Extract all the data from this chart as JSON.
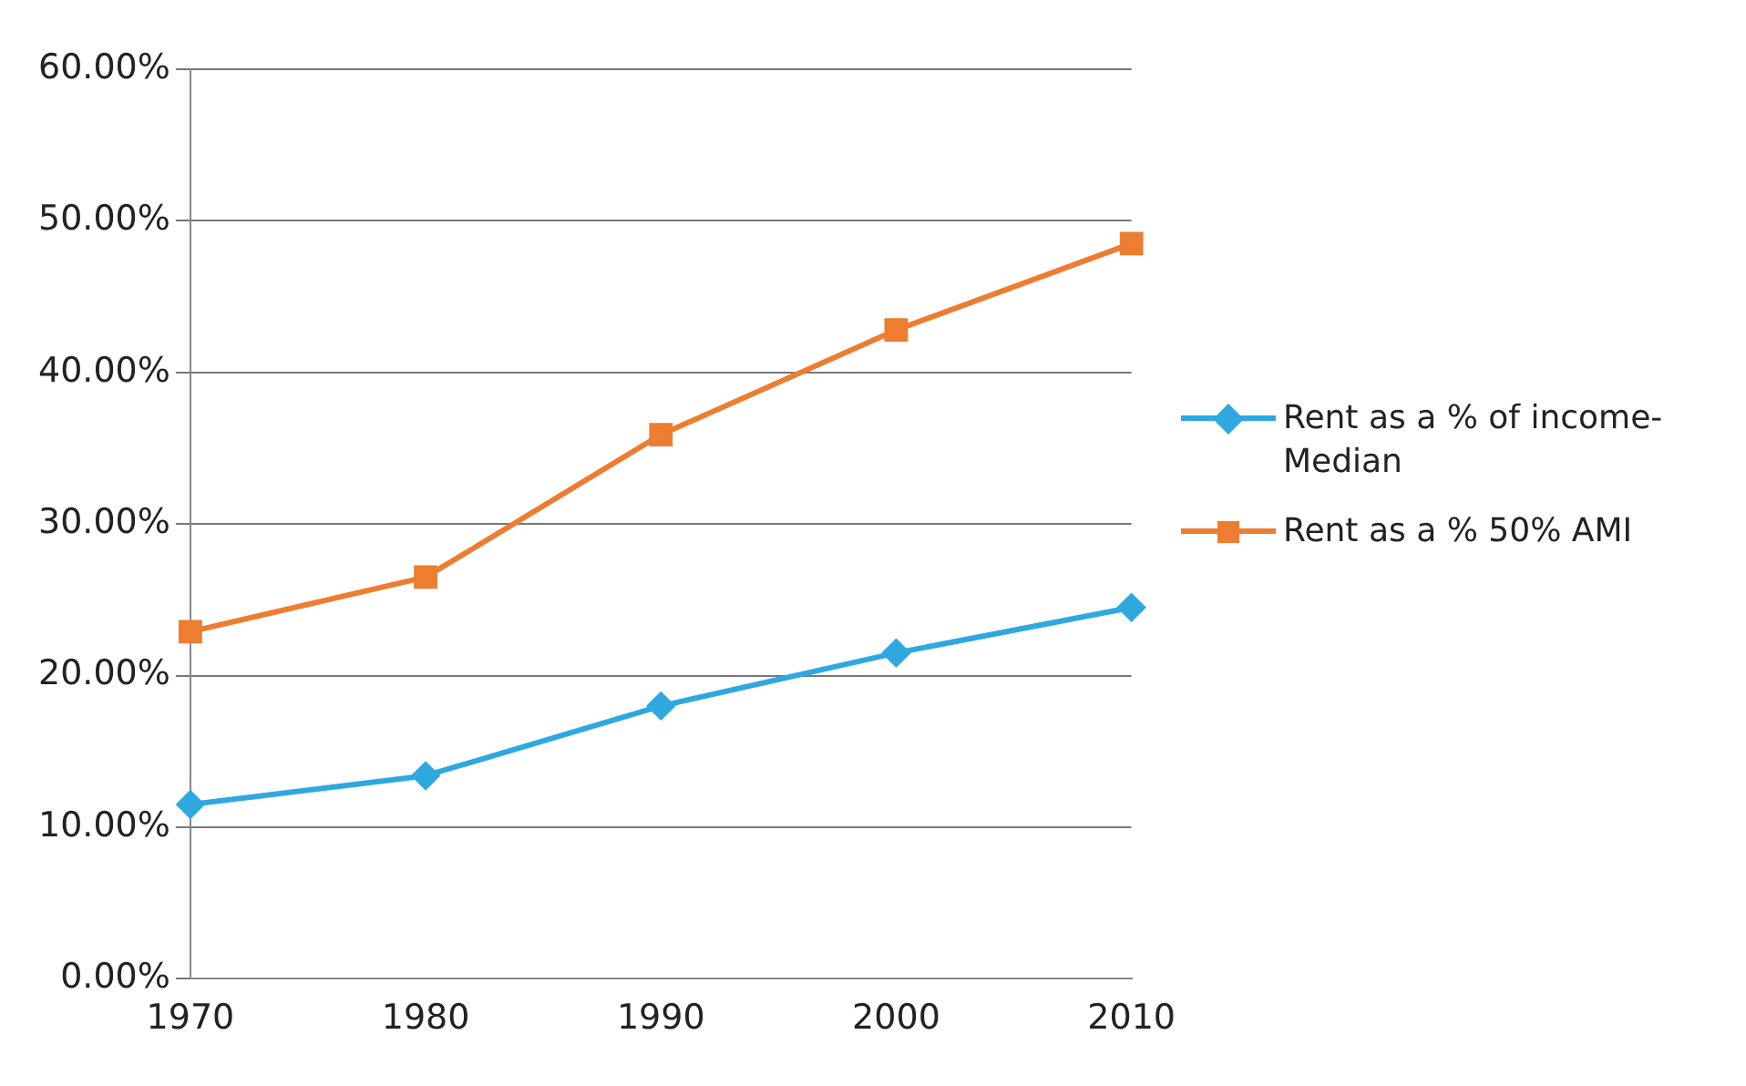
{
  "chart_data": {
    "type": "line",
    "categories": [
      "1970",
      "1980",
      "1990",
      "2000",
      "2010"
    ],
    "series": [
      {
        "name": "Rent as a % of income-Median",
        "color": "#2fa8e0",
        "marker": "diamond",
        "values": [
          11.5,
          13.4,
          18.0,
          21.5,
          24.5
        ]
      },
      {
        "name": "Rent as a % 50% AMI",
        "color": "#ed7d31",
        "marker": "square",
        "values": [
          22.9,
          26.5,
          35.9,
          42.8,
          48.5
        ]
      }
    ],
    "ylim": [
      0,
      60
    ],
    "yticks": [
      {
        "value": 0,
        "label": "0.00%"
      },
      {
        "value": 10,
        "label": "10.00%"
      },
      {
        "value": 20,
        "label": "20.00%"
      },
      {
        "value": 30,
        "label": "30.00%"
      },
      {
        "value": 40,
        "label": "40.00%"
      },
      {
        "value": 50,
        "label": "50.00%"
      },
      {
        "value": 60,
        "label": "60.00%"
      }
    ],
    "grid": "y",
    "legend": "right",
    "line_style": "solid"
  }
}
